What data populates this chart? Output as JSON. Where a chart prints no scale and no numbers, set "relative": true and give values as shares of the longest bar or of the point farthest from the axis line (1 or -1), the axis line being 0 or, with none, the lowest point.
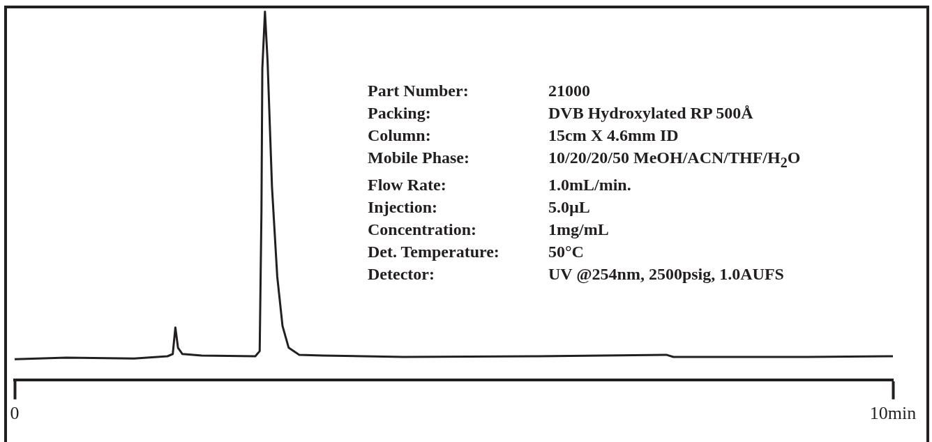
{
  "chart_data": {
    "type": "line",
    "relative": true,
    "x": [
      0,
      0.59,
      1.36,
      1.74,
      1.8,
      1.83,
      1.86,
      1.91,
      2.13,
      2.74,
      2.79,
      2.81,
      2.82,
      2.85,
      2.88,
      2.93,
      2.99,
      3.05,
      3.12,
      3.24,
      3.51,
      4.43,
      5.96,
      7.42,
      7.5,
      9.03,
      10
    ],
    "series": [
      {
        "color": "#231f20",
        "values": [
          0.056,
          0.06,
          0.058,
          0.064,
          0.07,
          0.142,
          0.087,
          0.07,
          0.066,
          0.064,
          0.078,
          0.456,
          0.845,
          1,
          0.864,
          0.524,
          0.28,
          0.146,
          0.087,
          0.068,
          0.066,
          0.062,
          0.064,
          0.068,
          0.062,
          0.062,
          0.064
        ]
      }
    ],
    "xlim": [
      0,
      10
    ],
    "xticks": [
      0,
      {
        "value": 10,
        "label": "10min"
      }
    ],
    "marker": "none",
    "line_style": "solid",
    "grid": false,
    "legend": false,
    "annotations": [
      "Part Number:",
      "21000",
      "Packing:",
      "DVB Hydroxylated RP 500Å",
      "Column:",
      "15cm X 4.6mm ID",
      "Mobile Phase:",
      "10/20/20/50 MeOH/ACN/THF/H$_{2}$O",
      "Flow Rate:",
      "1.0mL/min.",
      "Injection:",
      "5.0µL",
      "Concentration:",
      "1mg/mL",
      "Det. Temperature:",
      "50°C",
      "Detector:",
      "UV @254nm, 2500psig, 1.0AUFS"
    ]
  }
}
